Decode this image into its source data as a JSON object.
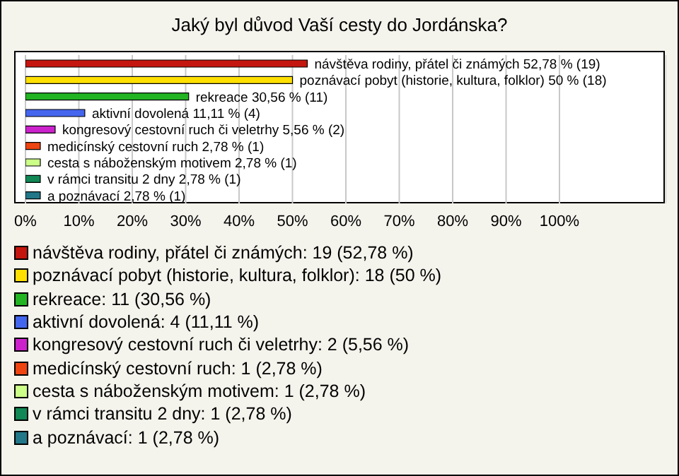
{
  "chart_data": {
    "type": "bar",
    "orientation": "horizontal",
    "title": "Jaký byl důvod Vaší cesty do Jordánska?",
    "categories": [
      null,
      null,
      null,
      null,
      null,
      null,
      null,
      null,
      null
    ],
    "values": [
      52.78,
      50,
      30.56,
      11.11,
      5.56,
      2.78,
      2.78,
      2.78,
      2.78
    ],
    "colors": [
      "#c4160e",
      "#ffe000",
      "#22b422",
      "#4466ee",
      "#cc22cc",
      "#ee4411",
      "#ccff88",
      "#118855",
      "#227788"
    ],
    "value_labels": [
      "návštěva rodiny, přátel či známých 52,78 % (19)",
      "poznávací pobyt (historie, kultura, folklor) 50 % (18)",
      "rekreace 30,56 % (11)",
      "aktivní dovolená 11,11 % (4)",
      "kongresový cestovní ruch či veletrhy 5,56 % (2)",
      "medicínský cestovní ruch 2,78 % (1)",
      "cesta s náboženským motivem 2,78 % (1)",
      "v rámci transitu 2 dny 2,78 % (1)",
      "a poznávací 2,78 % (1)"
    ],
    "xlim": [
      0,
      120
    ],
    "xticks": [
      {
        "value": 0,
        "label": "0%"
      },
      {
        "value": 10,
        "label": "10%"
      },
      {
        "value": 20,
        "label": "20%"
      },
      {
        "value": 30,
        "label": "30%"
      },
      {
        "value": 40,
        "label": "40%"
      },
      {
        "value": 50,
        "label": "50%"
      },
      {
        "value": 60,
        "label": "60%"
      },
      {
        "value": 70,
        "label": "70%"
      },
      {
        "value": 80,
        "label": "80%"
      },
      {
        "value": 90,
        "label": "90%"
      },
      {
        "value": 100,
        "label": "100%"
      }
    ],
    "grid": "x",
    "tick_labels": "x",
    "annotations": [
      "návštěva rodiny, přátel či známých: 19 (52,78 %)",
      "poznávací pobyt (historie, kultura, folklor): 18 (50 %)",
      "rekreace: 11 (30,56 %)",
      "aktivní dovolená: 4 (11,11 %)",
      "kongresový cestovní ruch či veletrhy: 2 (5,56 %)",
      "medicínský cestovní ruch: 1 (2,78 %)",
      "cesta s náboženským motivem: 1 (2,78 %)",
      "v rámci transitu 2 dny: 1 (2,78 %)",
      "a poznávací: 1 (2,78 %)"
    ]
  }
}
